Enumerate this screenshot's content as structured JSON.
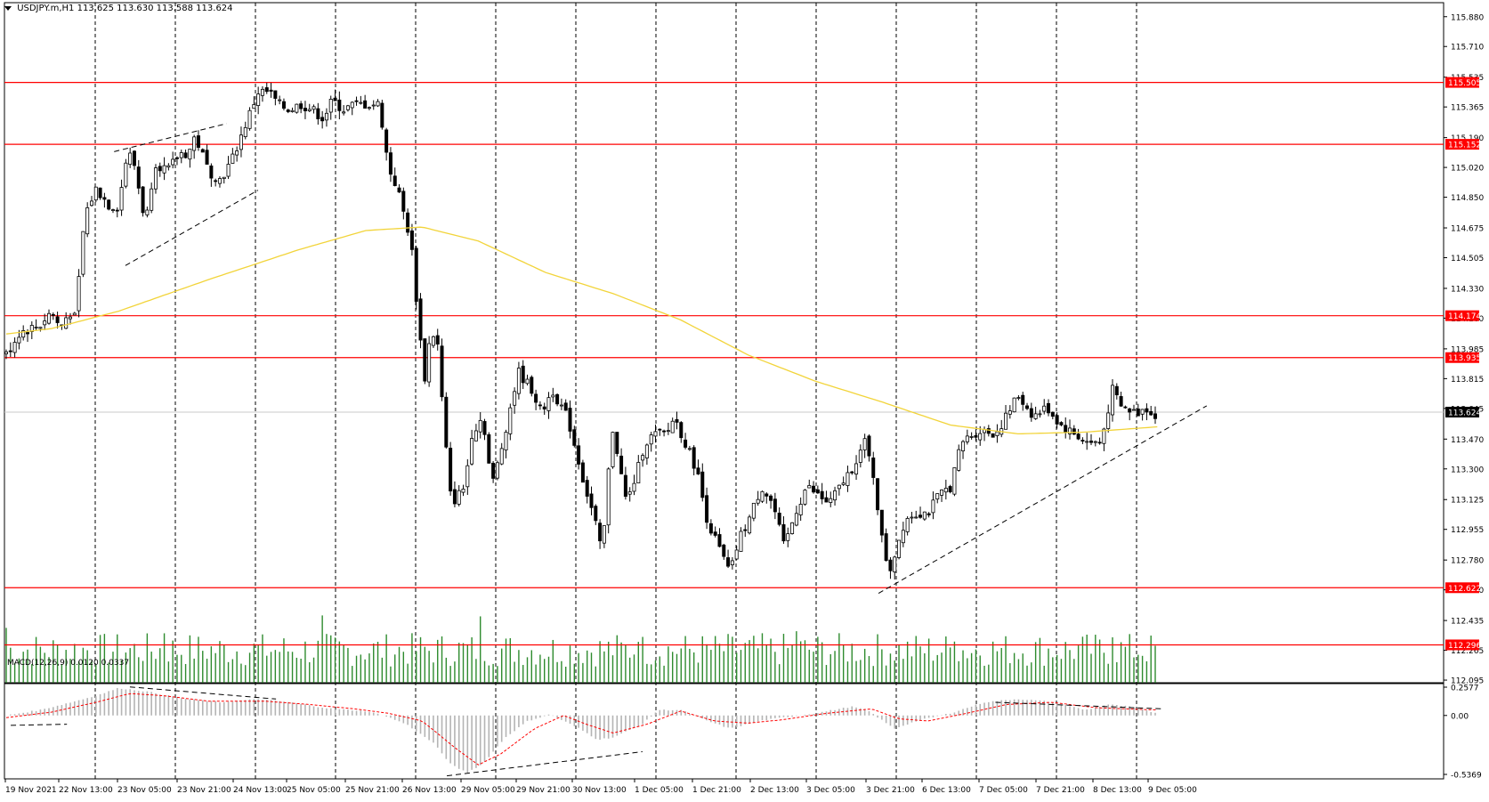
{
  "header": {
    "symbol": "USDJPY.m,H1",
    "ohlc": "113.625 113.630 113.588 113.624"
  },
  "colors": {
    "candle": "#000000",
    "ma": "#f2d43a",
    "level": "#ff0000",
    "volume": "#2e8b2e",
    "macd_hist": "#b4b4b4",
    "macd_signal": "#ff0000",
    "grid": "#000000"
  },
  "chart_data": {
    "type": "candlestick",
    "instrument": "USDJPY.m",
    "timeframe": "H1",
    "price_axis": {
      "ticks": [
        "115.880",
        "115.710",
        "115.535",
        "115.365",
        "115.190",
        "115.020",
        "114.850",
        "114.675",
        "114.505",
        "114.330",
        "114.160",
        "113.985",
        "113.815",
        "113.645",
        "113.470",
        "113.300",
        "113.125",
        "112.955",
        "112.780",
        "112.610",
        "112.435",
        "112.265",
        "112.095"
      ],
      "range": [
        112.08,
        115.96
      ]
    },
    "levels": [
      {
        "value": 115.505,
        "label": "115.505"
      },
      {
        "value": 115.152,
        "label": "115.152"
      },
      {
        "value": 114.174,
        "label": "114.174"
      },
      {
        "value": 113.935,
        "label": "113.935"
      },
      {
        "value": 112.622,
        "label": "112.622"
      },
      {
        "value": 112.296,
        "label": "112.296"
      }
    ],
    "current_price": {
      "value": 113.624,
      "label": "113.624"
    },
    "time_axis": [
      "19 Nov 2021",
      "22 Nov 13:00",
      "23 Nov 05:00",
      "23 Nov 21:00",
      "24 Nov 13:00",
      "25 Nov 05:00",
      "25 Nov 21:00",
      "26 Nov 13:00",
      "29 Nov 05:00",
      "29 Nov 21:00",
      "30 Nov 13:00",
      "1 Dec 05:00",
      "1 Dec 21:00",
      "2 Dec 13:00",
      "3 Dec 05:00",
      "3 Dec 21:00",
      "6 Dec 13:00",
      "7 Dec 05:00",
      "7 Dec 21:00",
      "8 Dec 13:00",
      "9 Dec 05:00"
    ],
    "bar_count": 270,
    "close_keyframes": [
      [
        0,
        113.95
      ],
      [
        6,
        114.08
      ],
      [
        15,
        114.12
      ],
      [
        20,
        114.2
      ],
      [
        24,
        114.1
      ],
      [
        28,
        114.2
      ],
      [
        31,
        114.15
      ],
      [
        33,
        114.5
      ],
      [
        35,
        114.75
      ],
      [
        40,
        114.9
      ],
      [
        46,
        114.8
      ],
      [
        50,
        114.8
      ],
      [
        53,
        115.05
      ],
      [
        56,
        115.1
      ],
      [
        62,
        114.7
      ],
      [
        66,
        115.05
      ],
      [
        72,
        115.0
      ],
      [
        77,
        115.1
      ],
      [
        81,
        115.1
      ],
      [
        84,
        115.2
      ],
      [
        90,
        115.0
      ],
      [
        95,
        114.95
      ],
      [
        100,
        115.05
      ],
      [
        106,
        115.25
      ],
      [
        112,
        115.45
      ],
      [
        117,
        115.45
      ],
      [
        121,
        115.38
      ],
      [
        126,
        115.35
      ],
      [
        131,
        115.38
      ],
      [
        136,
        115.35
      ],
      [
        141,
        115.3
      ],
      [
        145,
        115.4
      ],
      [
        150,
        115.35
      ],
      [
        155,
        115.38
      ],
      [
        160,
        115.38
      ],
      [
        166,
        115.38
      ],
      [
        170,
        115.02
      ],
      [
        174,
        114.9
      ],
      [
        178,
        114.7
      ],
      [
        180,
        114.6
      ],
      [
        183,
        114.2
      ],
      [
        186,
        113.8
      ],
      [
        189,
        114.1
      ],
      [
        192,
        114.0
      ],
      [
        195,
        113.5
      ],
      [
        198,
        113.1
      ],
      [
        204,
        113.2
      ],
      [
        207,
        113.5
      ],
      [
        212,
        113.6
      ],
      [
        216,
        113.2
      ],
      [
        220,
        113.4
      ],
      [
        225,
        113.7
      ],
      [
        228,
        113.85
      ],
      [
        234,
        113.75
      ],
      [
        238,
        113.62
      ],
      [
        243,
        113.75
      ],
      [
        250,
        113.58
      ],
      [
        257,
        113.22
      ],
      [
        262,
        113.0
      ],
      [
        265,
        112.8
      ],
      [
        268,
        113.3
      ],
      [
        270,
        113.55
      ],
      [
        273,
        113.3
      ],
      [
        276,
        113.1
      ],
      [
        281,
        113.3
      ],
      [
        284,
        113.45
      ],
      [
        289,
        113.5
      ],
      [
        294,
        113.5
      ],
      [
        297,
        113.6
      ],
      [
        302,
        113.45
      ],
      [
        307,
        113.3
      ],
      [
        312,
        113.0
      ],
      [
        317,
        112.85
      ],
      [
        322,
        112.7
      ],
      [
        326,
        112.9
      ],
      [
        330,
        113.0
      ],
      [
        336,
        113.2
      ],
      [
        341,
        113.1
      ],
      [
        346,
        112.85
      ],
      [
        351,
        113.05
      ],
      [
        356,
        113.2
      ],
      [
        361,
        113.15
      ],
      [
        366,
        113.1
      ],
      [
        371,
        113.2
      ],
      [
        376,
        113.3
      ],
      [
        382,
        113.45
      ],
      [
        386,
        113.25
      ],
      [
        390,
        112.85
      ],
      [
        393,
        112.72
      ],
      [
        396,
        112.85
      ],
      [
        400,
        113.02
      ],
      [
        405,
        113.05
      ],
      [
        410,
        113.05
      ],
      [
        415,
        113.15
      ],
      [
        420,
        113.2
      ],
      [
        425,
        113.45
      ],
      [
        430,
        113.5
      ],
      [
        434,
        113.52
      ],
      [
        440,
        113.5
      ],
      [
        445,
        113.6
      ],
      [
        450,
        113.72
      ],
      [
        457,
        113.6
      ],
      [
        463,
        113.65
      ],
      [
        469,
        113.55
      ],
      [
        475,
        113.5
      ],
      [
        481,
        113.45
      ],
      [
        487,
        113.45
      ],
      [
        492,
        113.75
      ],
      [
        496,
        113.65
      ],
      [
        503,
        113.62
      ],
      [
        507,
        113.65
      ],
      [
        512,
        113.6
      ]
    ],
    "moving_average_keyframes": [
      [
        0,
        114.07
      ],
      [
        20,
        114.1
      ],
      [
        50,
        114.2
      ],
      [
        90,
        114.38
      ],
      [
        130,
        114.55
      ],
      [
        160,
        114.66
      ],
      [
        185,
        114.68
      ],
      [
        210,
        114.6
      ],
      [
        240,
        114.42
      ],
      [
        270,
        114.3
      ],
      [
        300,
        114.15
      ],
      [
        330,
        113.95
      ],
      [
        360,
        113.8
      ],
      [
        390,
        113.68
      ],
      [
        420,
        113.55
      ],
      [
        450,
        113.5
      ],
      [
        480,
        113.51
      ],
      [
        512,
        113.54
      ]
    ],
    "trendlines": [
      {
        "from": [
          48,
          115.11
        ],
        "to": [
          98,
          115.27
        ],
        "style": "dashed"
      },
      {
        "from": [
          53,
          114.46
        ],
        "to": [
          112,
          114.89
        ],
        "style": "dashed"
      },
      {
        "from": [
          388,
          112.59
        ],
        "to": [
          534,
          113.66
        ],
        "style": "dashed"
      }
    ],
    "macd": {
      "label": "MACD(12,26,9) 0.0120 0.0337",
      "ticks": [
        "0.2577",
        "0.00",
        "-0.5369"
      ],
      "range": [
        -0.5369,
        0.2577
      ],
      "hist_keyframes": [
        [
          0,
          0.0
        ],
        [
          15,
          0.05
        ],
        [
          25,
          0.1
        ],
        [
          40,
          0.18
        ],
        [
          50,
          0.25
        ],
        [
          62,
          0.22
        ],
        [
          80,
          0.15
        ],
        [
          95,
          0.12
        ],
        [
          112,
          0.15
        ],
        [
          126,
          0.12
        ],
        [
          145,
          0.06
        ],
        [
          160,
          0.04
        ],
        [
          168,
          0.0
        ],
        [
          178,
          -0.08
        ],
        [
          190,
          -0.25
        ],
        [
          198,
          -0.45
        ],
        [
          205,
          -0.52
        ],
        [
          212,
          -0.44
        ],
        [
          222,
          -0.2
        ],
        [
          232,
          -0.05
        ],
        [
          242,
          0.01
        ],
        [
          255,
          -0.12
        ],
        [
          263,
          -0.22
        ],
        [
          270,
          -0.2
        ],
        [
          283,
          -0.08
        ],
        [
          290,
          0.05
        ],
        [
          300,
          0.05
        ],
        [
          312,
          -0.05
        ],
        [
          322,
          -0.12
        ],
        [
          335,
          -0.05
        ],
        [
          345,
          -0.02
        ],
        [
          360,
          0.02
        ],
        [
          376,
          0.08
        ],
        [
          383,
          0.05
        ],
        [
          390,
          -0.05
        ],
        [
          395,
          -0.12
        ],
        [
          405,
          -0.05
        ],
        [
          420,
          0.02
        ],
        [
          435,
          0.12
        ],
        [
          450,
          0.15
        ],
        [
          462,
          0.13
        ],
        [
          470,
          0.1
        ],
        [
          480,
          0.05
        ],
        [
          490,
          0.1
        ],
        [
          500,
          0.08
        ],
        [
          512,
          0.02
        ]
      ],
      "signal_keyframes": [
        [
          0,
          -0.02
        ],
        [
          20,
          0.03
        ],
        [
          40,
          0.12
        ],
        [
          55,
          0.2
        ],
        [
          70,
          0.18
        ],
        [
          90,
          0.13
        ],
        [
          115,
          0.13
        ],
        [
          135,
          0.1
        ],
        [
          155,
          0.06
        ],
        [
          170,
          0.02
        ],
        [
          185,
          -0.05
        ],
        [
          200,
          -0.3
        ],
        [
          210,
          -0.45
        ],
        [
          220,
          -0.35
        ],
        [
          235,
          -0.12
        ],
        [
          248,
          0.0
        ],
        [
          258,
          -0.08
        ],
        [
          270,
          -0.16
        ],
        [
          285,
          -0.08
        ],
        [
          300,
          0.04
        ],
        [
          315,
          -0.05
        ],
        [
          330,
          -0.07
        ],
        [
          345,
          -0.04
        ],
        [
          365,
          0.02
        ],
        [
          385,
          0.06
        ],
        [
          397,
          -0.03
        ],
        [
          410,
          -0.05
        ],
        [
          425,
          0.01
        ],
        [
          445,
          0.1
        ],
        [
          465,
          0.12
        ],
        [
          485,
          0.07
        ],
        [
          512,
          0.05
        ]
      ],
      "trendlines": [
        {
          "from": [
            2,
            -0.09
          ],
          "to": [
            27,
            -0.08
          ]
        },
        {
          "from": [
            55,
            0.26
          ],
          "to": [
            120,
            0.15
          ]
        },
        {
          "from": [
            196,
            -0.55
          ],
          "to": [
            283,
            -0.33
          ]
        },
        {
          "from": [
            440,
            0.12
          ],
          "to": [
            515,
            0.06
          ]
        }
      ]
    }
  }
}
